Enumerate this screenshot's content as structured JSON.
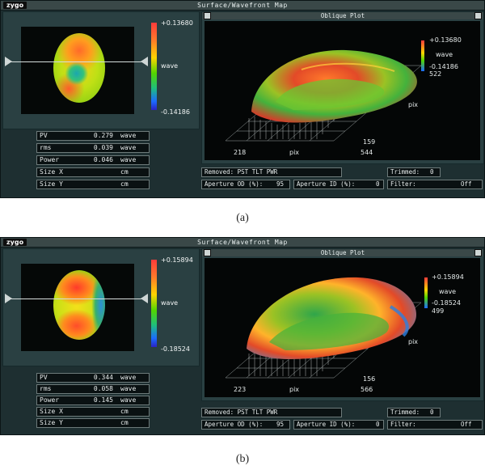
{
  "window": {
    "logo": "zygo",
    "title": "Surface/Wavefront Map"
  },
  "oblique": {
    "title": "Oblique Plot",
    "axis_label": "pix",
    "legend_unit": "wave"
  },
  "colorbar": {
    "unit": "wave",
    "colors": [
      "#ff3b3b",
      "#ffd400",
      "#52d600",
      "#1b6bff"
    ]
  },
  "status": {
    "removed": "Removed: PST TLT PWR",
    "trimmed_label": "Trimmed:",
    "aperture_od_label": "Aperture OD (%):",
    "aperture_id_label": "Aperture ID (%):",
    "filter_label": "Filter:"
  },
  "row_labels": {
    "pv": "PV",
    "rms": "rms",
    "power": "Power",
    "sizex": "Size X",
    "sizey": "Size Y"
  },
  "panels": [
    {
      "caption": "(a)",
      "colorbar_max": "+0.13680",
      "colorbar_min": "-0.14186",
      "results": {
        "pv": {
          "value": "0.279",
          "unit": "wave"
        },
        "rms": {
          "value": "0.039",
          "unit": "wave"
        },
        "power": {
          "value": "0.046",
          "unit": "wave"
        },
        "sizex": {
          "value": "",
          "unit": "cm"
        },
        "sizey": {
          "value": "",
          "unit": "cm"
        }
      },
      "oblique": {
        "max": "+0.13680",
        "min": "-0.14186",
        "y_top": "522",
        "y_bottom": "159",
        "x_left": "218",
        "x_right": "544"
      },
      "trimmed": "0",
      "aperture_od": "95",
      "aperture_id": "0",
      "filter": "Off"
    },
    {
      "caption": "(b)",
      "colorbar_max": "+0.15894",
      "colorbar_min": "-0.18524",
      "results": {
        "pv": {
          "value": "0.344",
          "unit": "wave"
        },
        "rms": {
          "value": "0.058",
          "unit": "wave"
        },
        "power": {
          "value": "0.145",
          "unit": "wave"
        },
        "sizex": {
          "value": "",
          "unit": "cm"
        },
        "sizey": {
          "value": "",
          "unit": "cm"
        }
      },
      "oblique": {
        "max": "+0.15894",
        "min": "-0.18524",
        "y_top": "499",
        "y_bottom": "156",
        "x_left": "223",
        "x_right": "566"
      },
      "trimmed": "0",
      "aperture_od": "95",
      "aperture_id": "0",
      "filter": "Off"
    }
  ]
}
